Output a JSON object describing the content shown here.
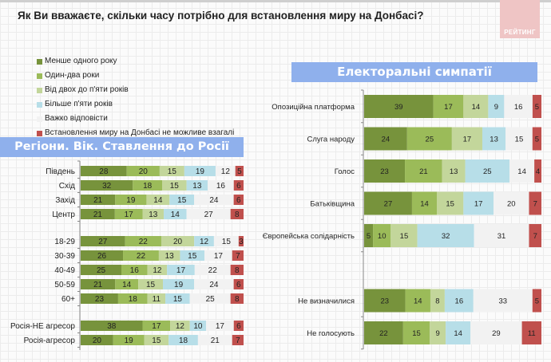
{
  "title": "Як Ви вважаєте, скільки часу потрібно для встановлення миру на Донбасі?",
  "logo_text": "РЕЙТИНГ",
  "legend": [
    {
      "label": "Менше одного року",
      "color": "#77933c"
    },
    {
      "label": "Один-два роки",
      "color": "#9bbb59"
    },
    {
      "label": "Від двох до п'яти років",
      "color": "#c3d69b"
    },
    {
      "label": "Більше п'яти років",
      "color": "#b7dee8"
    },
    {
      "label": "Важко відповісти",
      "color": "#f2f2f2"
    },
    {
      "label": "Встановлення миру на Донбасі не можливе взагалі",
      "color": "#c0504d"
    }
  ],
  "left_header": "Регіони. Вік. Ставлення до Росії",
  "right_header": "Електоральні симпатії",
  "chart_data": [
    {
      "type": "bar",
      "orientation": "horizontal-stacked-100",
      "title": "Регіони. Вік. Ставлення до Росії",
      "series_names": [
        "Менше одного року",
        "Один-два роки",
        "Від двох до п'яти років",
        "Більше п'яти років",
        "Важко відповісти",
        "Встановлення миру на Донбасі не можливе взагалі"
      ],
      "groups": [
        {
          "categories": [
            "Південь",
            "Схід",
            "Захід",
            "Центр"
          ],
          "values": [
            [
              28,
              20,
              15,
              19,
              12,
              5
            ],
            [
              32,
              18,
              15,
              13,
              16,
              6
            ],
            [
              21,
              19,
              14,
              15,
              24,
              6
            ],
            [
              21,
              17,
              13,
              14,
              27,
              8
            ]
          ]
        },
        {
          "categories": [
            "18-29",
            "30-39",
            "40-49",
            "50-59",
            "60+"
          ],
          "values": [
            [
              27,
              22,
              20,
              12,
              15,
              3
            ],
            [
              26,
              22,
              13,
              15,
              17,
              7
            ],
            [
              25,
              16,
              12,
              17,
              22,
              8
            ],
            [
              21,
              14,
              15,
              19,
              24,
              6
            ],
            [
              23,
              18,
              11,
              15,
              25,
              8
            ]
          ]
        },
        {
          "categories": [
            "Росія-НЕ агресор",
            "Росія-агресор"
          ],
          "values": [
            [
              38,
              17,
              12,
              10,
              17,
              6
            ],
            [
              20,
              19,
              15,
              18,
              21,
              7
            ]
          ]
        }
      ],
      "xlim": [
        0,
        100
      ]
    },
    {
      "type": "bar",
      "orientation": "horizontal-stacked-100",
      "title": "Електоральні симпатії",
      "series_names": [
        "Менше одного року",
        "Один-два роки",
        "Від двох до п'яти років",
        "Більше п'яти років",
        "Важко відповісти",
        "Встановлення миру на Донбасі не можливе взагалі"
      ],
      "groups": [
        {
          "categories": [
            "Опозиційна платформа",
            "Слуга народу",
            "Голос",
            "Батьківщина",
            "Європейська солідарність"
          ],
          "values": [
            [
              39,
              17,
              14,
              9,
              16,
              5
            ],
            [
              24,
              25,
              17,
              13,
              15,
              5
            ],
            [
              23,
              21,
              13,
              25,
              14,
              4
            ],
            [
              27,
              14,
              15,
              17,
              20,
              7
            ],
            [
              5,
              10,
              15,
              32,
              31,
              7
            ]
          ]
        },
        {
          "categories": [
            "Не визначилися",
            "Не голосують"
          ],
          "values": [
            [
              23,
              14,
              8,
              16,
              33,
              5
            ],
            [
              22,
              15,
              9,
              14,
              29,
              11
            ]
          ]
        }
      ],
      "xlim": [
        0,
        100
      ]
    }
  ]
}
